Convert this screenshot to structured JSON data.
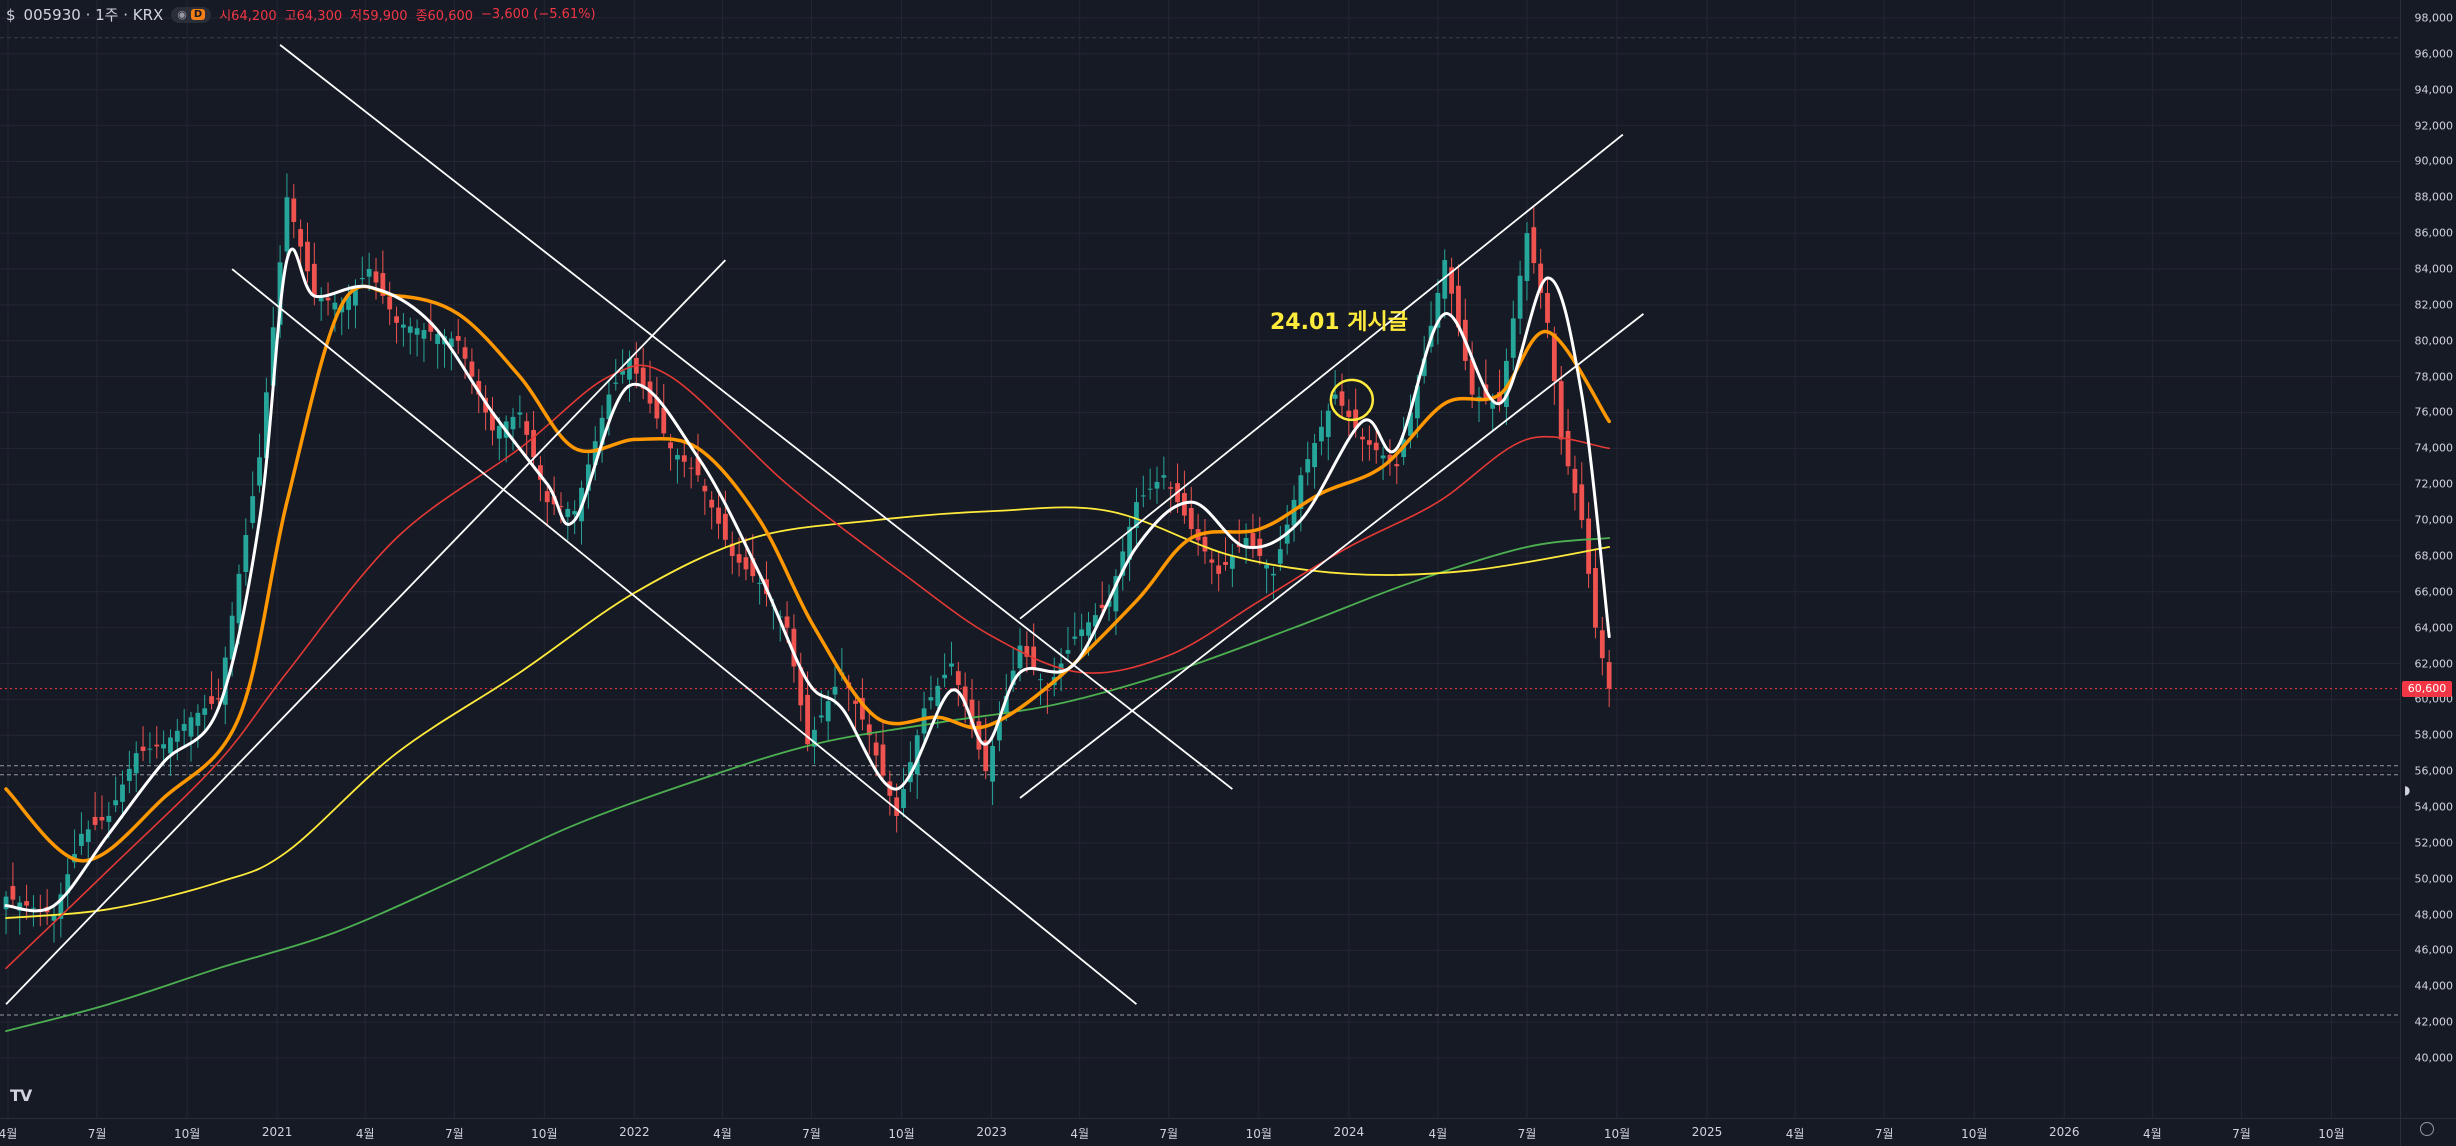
{
  "legend": {
    "currency_icon": "$",
    "symbol": "005930 · 1주 · KRX",
    "eye_icon": "eye-icon",
    "interval_badge": "D",
    "open": "시64,200",
    "high": "고64,300",
    "low": "저59,900",
    "close": "종60,600",
    "change": "−3,600 (−5.61%)"
  },
  "annotation": {
    "text": "24.01  게시글"
  },
  "logo": {
    "text": "TV"
  },
  "colors": {
    "background": "#161a25",
    "up": "#26a69a",
    "down": "#ef5350",
    "ma_short": "#ffffff",
    "ma_mid": "#ff9800",
    "ma_120": "#e53935",
    "ma_240": "#ffeb3b",
    "ma_480": "#4caf50",
    "trendline": "#ffffff",
    "annotation": "#ffeb3b",
    "last_price": "#f23645"
  },
  "chart_data": {
    "type": "candlestick",
    "symbol": "005930",
    "interval": "1주",
    "exchange": "KRX",
    "ylim": [
      39000,
      99000
    ],
    "y_ticks": [
      "40,000",
      "42,000",
      "44,000",
      "46,000",
      "48,000",
      "50,000",
      "52,000",
      "54,000",
      "56,000",
      "58,000",
      "60,000",
      "62,000",
      "64,000",
      "66,000",
      "68,000",
      "70,000",
      "72,000",
      "74,000",
      "76,000",
      "78,000",
      "80,000",
      "82,000",
      "84,000",
      "86,000",
      "88,000",
      "90,000",
      "92,000",
      "94,000",
      "96,000",
      "98,000"
    ],
    "x_ticks": [
      {
        "label": "4월",
        "date": "2020-04"
      },
      {
        "label": "7월",
        "date": "2020-07"
      },
      {
        "label": "10월",
        "date": "2020-10"
      },
      {
        "label": "2021",
        "date": "2021-01"
      },
      {
        "label": "4월",
        "date": "2021-04"
      },
      {
        "label": "7월",
        "date": "2021-07"
      },
      {
        "label": "10월",
        "date": "2021-10"
      },
      {
        "label": "2022",
        "date": "2022-01"
      },
      {
        "label": "4월",
        "date": "2022-04"
      },
      {
        "label": "7월",
        "date": "2022-07"
      },
      {
        "label": "10월",
        "date": "2022-10"
      },
      {
        "label": "2023",
        "date": "2023-01"
      },
      {
        "label": "4월",
        "date": "2023-04"
      },
      {
        "label": "7월",
        "date": "2023-07"
      },
      {
        "label": "10월",
        "date": "2023-10"
      },
      {
        "label": "2024",
        "date": "2024-01"
      },
      {
        "label": "4월",
        "date": "2024-04"
      },
      {
        "label": "7월",
        "date": "2024-07"
      },
      {
        "label": "10월",
        "date": "2024-10"
      },
      {
        "label": "2025",
        "date": "2025-01"
      },
      {
        "label": "4월",
        "date": "2025-04"
      },
      {
        "label": "7월",
        "date": "2025-07"
      },
      {
        "label": "10월",
        "date": "2025-10"
      },
      {
        "label": "2026",
        "date": "2026-01"
      },
      {
        "label": "4월",
        "date": "2026-04"
      },
      {
        "label": "7월",
        "date": "2026-07"
      },
      {
        "label": "10월",
        "date": "2026-10"
      }
    ],
    "last_price": {
      "value": 60600,
      "label": "60,600"
    },
    "dashed_levels": [
      56300,
      55800,
      42400,
      96900
    ],
    "close_path": [
      {
        "d": "2020-03-30",
        "c": 49000
      },
      {
        "d": "2020-04-20",
        "c": 48500
      },
      {
        "d": "2020-05-18",
        "c": 48000
      },
      {
        "d": "2020-06-15",
        "c": 52500
      },
      {
        "d": "2020-07-13",
        "c": 53500
      },
      {
        "d": "2020-08-10",
        "c": 57000
      },
      {
        "d": "2020-09-07",
        "c": 57500
      },
      {
        "d": "2020-10-05",
        "c": 59000
      },
      {
        "d": "2020-11-02",
        "c": 60000
      },
      {
        "d": "2020-11-23",
        "c": 67000
      },
      {
        "d": "2020-12-14",
        "c": 73500
      },
      {
        "d": "2021-01-11",
        "c": 88000
      },
      {
        "d": "2021-02-08",
        "c": 82500
      },
      {
        "d": "2021-03-08",
        "c": 82000
      },
      {
        "d": "2021-04-05",
        "c": 84000
      },
      {
        "d": "2021-05-03",
        "c": 81000
      },
      {
        "d": "2021-06-07",
        "c": 80500
      },
      {
        "d": "2021-07-05",
        "c": 80000
      },
      {
        "d": "2021-08-09",
        "c": 75000
      },
      {
        "d": "2021-09-06",
        "c": 76000
      },
      {
        "d": "2021-10-04",
        "c": 71000
      },
      {
        "d": "2021-11-01",
        "c": 70500
      },
      {
        "d": "2021-12-06",
        "c": 77000
      },
      {
        "d": "2021-12-27",
        "c": 79000
      },
      {
        "d": "2022-02-07",
        "c": 74000
      },
      {
        "d": "2022-03-07",
        "c": 72500
      },
      {
        "d": "2022-04-11",
        "c": 68000
      },
      {
        "d": "2022-05-09",
        "c": 66500
      },
      {
        "d": "2022-06-06",
        "c": 64000
      },
      {
        "d": "2022-06-27",
        "c": 57500
      },
      {
        "d": "2022-08-01",
        "c": 61500
      },
      {
        "d": "2022-08-29",
        "c": 58000
      },
      {
        "d": "2022-09-26",
        "c": 53500
      },
      {
        "d": "2022-10-24",
        "c": 59500
      },
      {
        "d": "2022-11-21",
        "c": 62000
      },
      {
        "d": "2022-12-26",
        "c": 56000
      },
      {
        "d": "2023-01-30",
        "c": 63000
      },
      {
        "d": "2023-02-27",
        "c": 60500
      },
      {
        "d": "2023-03-27",
        "c": 63500
      },
      {
        "d": "2023-05-01",
        "c": 65500
      },
      {
        "d": "2023-05-29",
        "c": 71000
      },
      {
        "d": "2023-06-26",
        "c": 72500
      },
      {
        "d": "2023-07-24",
        "c": 69500
      },
      {
        "d": "2023-08-21",
        "c": 67000
      },
      {
        "d": "2023-09-18",
        "c": 69000
      },
      {
        "d": "2023-10-16",
        "c": 67000
      },
      {
        "d": "2023-11-13",
        "c": 72500
      },
      {
        "d": "2023-12-18",
        "c": 77000
      },
      {
        "d": "2024-01-15",
        "c": 74500
      },
      {
        "d": "2024-02-19",
        "c": 73000
      },
      {
        "d": "2024-03-18",
        "c": 79000
      },
      {
        "d": "2024-04-08",
        "c": 84500
      },
      {
        "d": "2024-05-06",
        "c": 77000
      },
      {
        "d": "2024-06-03",
        "c": 76500
      },
      {
        "d": "2024-07-01",
        "c": 86000
      },
      {
        "d": "2024-07-22",
        "c": 81000
      },
      {
        "d": "2024-08-05",
        "c": 74500
      },
      {
        "d": "2024-08-26",
        "c": 70000
      },
      {
        "d": "2024-09-09",
        "c": 64000
      },
      {
        "d": "2024-09-23",
        "c": 60600
      }
    ],
    "series": [
      {
        "values": [
          {
            "d": "2020-03-30",
            "v": 48500
          },
          {
            "d": "2020-05-18",
            "v": 48500
          },
          {
            "d": "2020-07-13",
            "v": 52500
          },
          {
            "d": "2020-09-07",
            "v": 56500
          },
          {
            "d": "2020-11-02",
            "v": 59500
          },
          {
            "d": "2020-12-14",
            "v": 70000
          },
          {
            "d": "2021-01-11",
            "v": 84500
          },
          {
            "d": "2021-02-08",
            "v": 82500
          },
          {
            "d": "2021-04-05",
            "v": 83000
          },
          {
            "d": "2021-06-07",
            "v": 81000
          },
          {
            "d": "2021-08-09",
            "v": 76000
          },
          {
            "d": "2021-10-04",
            "v": 72000
          },
          {
            "d": "2021-11-01",
            "v": 70000
          },
          {
            "d": "2021-12-27",
            "v": 77500
          },
          {
            "d": "2022-03-07",
            "v": 73500
          },
          {
            "d": "2022-05-09",
            "v": 67000
          },
          {
            "d": "2022-06-27",
            "v": 61000
          },
          {
            "d": "2022-08-01",
            "v": 59500
          },
          {
            "d": "2022-09-26",
            "v": 55000
          },
          {
            "d": "2022-11-21",
            "v": 60500
          },
          {
            "d": "2022-12-26",
            "v": 57500
          },
          {
            "d": "2023-01-30",
            "v": 61500
          },
          {
            "d": "2023-03-27",
            "v": 62000
          },
          {
            "d": "2023-05-29",
            "v": 68500
          },
          {
            "d": "2023-07-24",
            "v": 71000
          },
          {
            "d": "2023-09-18",
            "v": 68500
          },
          {
            "d": "2023-11-13",
            "v": 70000
          },
          {
            "d": "2024-01-15",
            "v": 75500
          },
          {
            "d": "2024-02-19",
            "v": 74000
          },
          {
            "d": "2024-04-08",
            "v": 81500
          },
          {
            "d": "2024-06-03",
            "v": 76500
          },
          {
            "d": "2024-07-22",
            "v": 83500
          },
          {
            "d": "2024-08-26",
            "v": 77000
          },
          {
            "d": "2024-09-23",
            "v": 63500
          }
        ]
      },
      {
        "values": [
          {
            "d": "2020-03-30",
            "v": 55000
          },
          {
            "d": "2020-06-15",
            "v": 51000
          },
          {
            "d": "2020-09-07",
            "v": 54500
          },
          {
            "d": "2020-11-23",
            "v": 59000
          },
          {
            "d": "2021-01-11",
            "v": 71000
          },
          {
            "d": "2021-03-08",
            "v": 82000
          },
          {
            "d": "2021-05-03",
            "v": 82500
          },
          {
            "d": "2021-07-05",
            "v": 81500
          },
          {
            "d": "2021-09-06",
            "v": 78000
          },
          {
            "d": "2021-11-01",
            "v": 74000
          },
          {
            "d": "2022-01-03",
            "v": 74500
          },
          {
            "d": "2022-03-07",
            "v": 74000
          },
          {
            "d": "2022-05-09",
            "v": 70000
          },
          {
            "d": "2022-07-04",
            "v": 64000
          },
          {
            "d": "2022-09-05",
            "v": 59000
          },
          {
            "d": "2022-11-07",
            "v": 59000
          },
          {
            "d": "2022-12-26",
            "v": 58500
          },
          {
            "d": "2023-03-06",
            "v": 61000
          },
          {
            "d": "2023-05-29",
            "v": 65500
          },
          {
            "d": "2023-07-24",
            "v": 69000
          },
          {
            "d": "2023-10-02",
            "v": 69500
          },
          {
            "d": "2023-12-04",
            "v": 71500
          },
          {
            "d": "2024-02-05",
            "v": 73000
          },
          {
            "d": "2024-04-08",
            "v": 76500
          },
          {
            "d": "2024-06-03",
            "v": 77000
          },
          {
            "d": "2024-07-22",
            "v": 80500
          },
          {
            "d": "2024-09-23",
            "v": 75500
          }
        ]
      },
      {
        "values": [
          {
            "d": "2020-03-30",
            "v": 45000
          },
          {
            "d": "2020-07-13",
            "v": 50500
          },
          {
            "d": "2020-11-02",
            "v": 56500
          },
          {
            "d": "2021-01-11",
            "v": 61500
          },
          {
            "d": "2021-05-03",
            "v": 69000
          },
          {
            "d": "2021-09-06",
            "v": 74000
          },
          {
            "d": "2021-12-06",
            "v": 78000
          },
          {
            "d": "2022-02-07",
            "v": 78000
          },
          {
            "d": "2022-06-06",
            "v": 72000
          },
          {
            "d": "2022-10-03",
            "v": 67000
          },
          {
            "d": "2023-01-02",
            "v": 63500
          },
          {
            "d": "2023-04-03",
            "v": 61500
          },
          {
            "d": "2023-07-03",
            "v": 62500
          },
          {
            "d": "2023-10-02",
            "v": 65500
          },
          {
            "d": "2024-01-01",
            "v": 68500
          },
          {
            "d": "2024-04-01",
            "v": 71000
          },
          {
            "d": "2024-07-01",
            "v": 74500
          },
          {
            "d": "2024-09-23",
            "v": 74000
          }
        ]
      },
      {
        "values": [
          {
            "d": "2020-03-30",
            "v": 47800
          },
          {
            "d": "2020-07-13",
            "v": 48300
          },
          {
            "d": "2020-11-02",
            "v": 49800
          },
          {
            "d": "2021-01-11",
            "v": 51500
          },
          {
            "d": "2021-05-03",
            "v": 57000
          },
          {
            "d": "2021-09-06",
            "v": 61500
          },
          {
            "d": "2022-01-03",
            "v": 66000
          },
          {
            "d": "2022-05-02",
            "v": 69000
          },
          {
            "d": "2022-09-05",
            "v": 70000
          },
          {
            "d": "2023-01-02",
            "v": 70500
          },
          {
            "d": "2023-05-01",
            "v": 70500
          },
          {
            "d": "2023-09-04",
            "v": 68000
          },
          {
            "d": "2024-01-01",
            "v": 67000
          },
          {
            "d": "2024-05-06",
            "v": 67200
          },
          {
            "d": "2024-09-23",
            "v": 68500
          }
        ]
      },
      {
        "values": [
          {
            "d": "2020-03-30",
            "v": 41500
          },
          {
            "d": "2020-07-13",
            "v": 43000
          },
          {
            "d": "2020-11-02",
            "v": 45000
          },
          {
            "d": "2021-03-01",
            "v": 47000
          },
          {
            "d": "2021-07-05",
            "v": 50000
          },
          {
            "d": "2021-11-01",
            "v": 53000
          },
          {
            "d": "2022-03-07",
            "v": 55500
          },
          {
            "d": "2022-07-04",
            "v": 57500
          },
          {
            "d": "2022-11-07",
            "v": 58700
          },
          {
            "d": "2023-03-06",
            "v": 59700
          },
          {
            "d": "2023-07-03",
            "v": 61500
          },
          {
            "d": "2023-11-06",
            "v": 64000
          },
          {
            "d": "2024-03-04",
            "v": 66500
          },
          {
            "d": "2024-07-01",
            "v": 68500
          },
          {
            "d": "2024-09-23",
            "v": 69000
          }
        ]
      }
    ],
    "trendlines": [
      {
        "d1": "2020-03-30",
        "v1": 43000,
        "d2": "2022-04-04",
        "v2": 84500
      },
      {
        "d1": "2020-11-16",
        "v1": 84000,
        "d2": "2023-05-29",
        "v2": 43000
      },
      {
        "d1": "2021-01-04",
        "v1": 96500,
        "d2": "2023-09-04",
        "v2": 55000
      },
      {
        "d1": "2023-01-30",
        "v1": 64500,
        "d2": "2024-10-07",
        "v2": 91500
      },
      {
        "d1": "2023-01-30",
        "v1": 54500,
        "d2": "2024-10-28",
        "v2": 81500
      }
    ],
    "annotation_marker": {
      "d": "2024-01-01",
      "v": 76700
    }
  }
}
